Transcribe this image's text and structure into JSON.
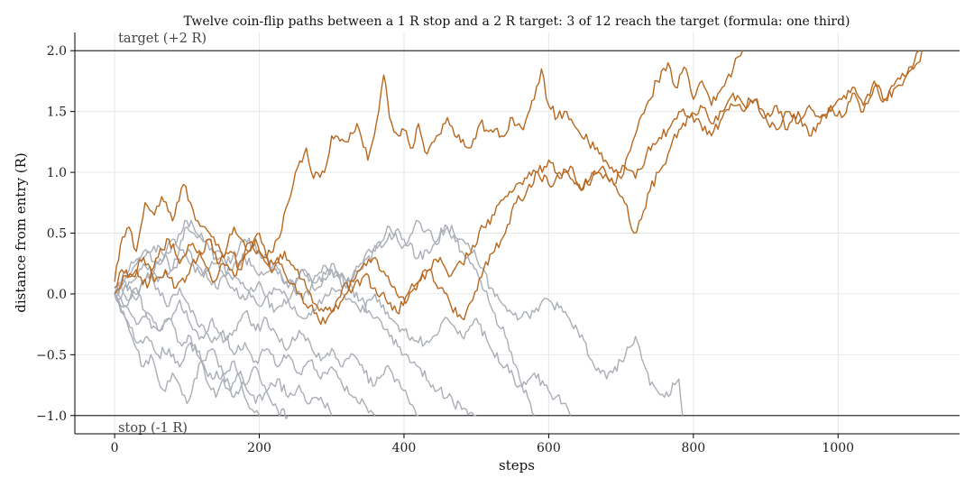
{
  "chart_data": {
    "type": "line",
    "title": "Twelve coin-flip paths between a 1 R stop and a 2 R target: 3 of 12 reach the target (formula: one third)",
    "xlabel": "steps",
    "ylabel": "distance from entry (R)",
    "xlim": [
      -55,
      1168
    ],
    "ylim": [
      -1.15,
      2.15
    ],
    "xticks": [
      0,
      200,
      400,
      600,
      800,
      1000
    ],
    "xtick_labels": [
      "0",
      "200",
      "400",
      "600",
      "800",
      "1000"
    ],
    "yticks": [
      -1.0,
      -0.5,
      0.0,
      0.5,
      1.0,
      1.5,
      2.0
    ],
    "ytick_labels": [
      "−1.0",
      "−0.5",
      "0.0",
      "0.5",
      "1.0",
      "1.5",
      "2.0"
    ],
    "grid": true,
    "reference_lines": [
      {
        "y": 2.0,
        "label": "target (+2 R)"
      },
      {
        "y": -1.0,
        "label": "stop (-1 R)"
      }
    ],
    "colors": {
      "hit_target": "#b8671e",
      "hit_stop": "#a9aeb7",
      "reference": "#333333",
      "grid": "#e6e6e6"
    },
    "series": [
      {
        "outcome": "target",
        "x": [
          0,
          8,
          20,
          30,
          42,
          55,
          65,
          80,
          95,
          105,
          115,
          125,
          140,
          150,
          165,
          175,
          185,
          200,
          210,
          225,
          240,
          250,
          265,
          275,
          290,
          300,
          320,
          335,
          350,
          365,
          372,
          380,
          392,
          400,
          412,
          420,
          432,
          445,
          460,
          470,
          490,
          505,
          520,
          535,
          550,
          565,
          580,
          590,
          600,
          612,
          625,
          640,
          655,
          670,
          690,
          700,
          710,
          722,
          735,
          750,
          765,
          775,
          790,
          800,
          812,
          825,
          840,
          855,
          862,
          868
        ],
        "y": [
          0.1,
          0.4,
          0.55,
          0.35,
          0.75,
          0.65,
          0.8,
          0.6,
          0.9,
          0.75,
          0.6,
          0.55,
          0.4,
          0.3,
          0.55,
          0.45,
          0.35,
          0.5,
          0.3,
          0.45,
          0.75,
          1.0,
          1.2,
          0.95,
          1.0,
          1.3,
          1.25,
          1.4,
          1.1,
          1.5,
          1.8,
          1.45,
          1.3,
          1.35,
          1.2,
          1.4,
          1.15,
          1.3,
          1.45,
          1.3,
          1.2,
          1.4,
          1.35,
          1.3,
          1.45,
          1.35,
          1.6,
          1.85,
          1.55,
          1.45,
          1.5,
          1.35,
          1.25,
          1.15,
          1.0,
          0.95,
          1.15,
          1.35,
          1.55,
          1.75,
          1.9,
          1.7,
          1.85,
          1.6,
          1.75,
          1.55,
          1.7,
          1.85,
          1.95,
          2.0
        ]
      },
      {
        "outcome": "target",
        "x": [
          0,
          10,
          25,
          40,
          55,
          70,
          85,
          100,
          115,
          130,
          145,
          160,
          175,
          190,
          205,
          220,
          235,
          250,
          265,
          280,
          300,
          315,
          330,
          345,
          360,
          375,
          390,
          405,
          420,
          435,
          450,
          465,
          480,
          495,
          510,
          525,
          540,
          555,
          570,
          585,
          600,
          615,
          630,
          645,
          660,
          675,
          690,
          705,
          718,
          725,
          740,
          752,
          765,
          780,
          795,
          810,
          825,
          840,
          855,
          870,
          885,
          900,
          915,
          930,
          945,
          960,
          975,
          990,
          1005,
          1020,
          1035,
          1050,
          1065,
          1080,
          1095,
          1105,
          1112
        ],
        "y": [
          0.05,
          0.2,
          0.15,
          0.3,
          0.1,
          0.2,
          0.05,
          0.15,
          0.3,
          0.45,
          0.25,
          0.35,
          0.2,
          0.4,
          0.3,
          0.2,
          0.35,
          0.2,
          0.05,
          -0.1,
          -0.15,
          0.05,
          0.1,
          0.25,
          0.3,
          0.15,
          0.0,
          -0.05,
          0.1,
          0.2,
          0.05,
          -0.1,
          -0.2,
          -0.05,
          0.2,
          0.35,
          0.5,
          0.75,
          0.85,
          1.0,
          0.9,
          0.95,
          1.05,
          0.85,
          0.95,
          1.05,
          0.9,
          0.75,
          0.5,
          0.6,
          0.85,
          1.0,
          1.15,
          1.35,
          1.45,
          1.4,
          1.3,
          1.45,
          1.55,
          1.5,
          1.6,
          1.45,
          1.55,
          1.35,
          1.5,
          1.3,
          1.4,
          1.55,
          1.45,
          1.65,
          1.5,
          1.7,
          1.6,
          1.75,
          1.8,
          1.9,
          2.0
        ]
      },
      {
        "outcome": "target",
        "x": [
          0,
          15,
          30,
          45,
          60,
          75,
          90,
          105,
          120,
          135,
          150,
          165,
          180,
          195,
          210,
          225,
          240,
          255,
          270,
          285,
          300,
          315,
          330,
          345,
          360,
          375,
          390,
          405,
          420,
          435,
          450,
          465,
          480,
          495,
          510,
          525,
          540,
          555,
          570,
          585,
          600,
          615,
          630,
          645,
          660,
          675,
          690,
          705,
          720,
          735,
          750,
          765,
          780,
          795,
          810,
          825,
          840,
          855,
          870,
          885,
          900,
          915,
          930,
          945,
          960,
          975,
          990,
          1005,
          1020,
          1035,
          1050,
          1065,
          1080,
          1095,
          1110,
          1116
        ],
        "y": [
          0.0,
          0.15,
          0.2,
          0.05,
          0.3,
          0.45,
          0.25,
          0.4,
          0.3,
          0.1,
          0.25,
          0.15,
          0.35,
          0.45,
          0.25,
          0.3,
          0.1,
          0.0,
          -0.1,
          -0.25,
          -0.15,
          -0.05,
          0.05,
          0.15,
          0.05,
          -0.05,
          -0.15,
          0.0,
          0.1,
          0.2,
          0.3,
          0.15,
          0.25,
          0.4,
          0.55,
          0.65,
          0.8,
          0.9,
          0.95,
          1.0,
          1.1,
          1.0,
          0.95,
          0.85,
          1.0,
          0.95,
          0.9,
          1.05,
          0.95,
          1.15,
          1.25,
          1.35,
          1.5,
          1.45,
          1.55,
          1.4,
          1.5,
          1.65,
          1.55,
          1.6,
          1.45,
          1.35,
          1.5,
          1.4,
          1.55,
          1.45,
          1.5,
          1.6,
          1.7,
          1.55,
          1.75,
          1.6,
          1.7,
          1.8,
          1.9,
          2.0
        ]
      },
      {
        "outcome": "stop",
        "x": [
          0,
          10,
          20,
          30,
          40,
          50,
          60,
          70,
          80,
          90,
          100,
          110,
          120,
          130,
          140,
          150,
          160,
          170,
          180,
          190,
          200
        ],
        "y": [
          0.0,
          -0.15,
          -0.3,
          -0.45,
          -0.6,
          -0.5,
          -0.7,
          -0.8,
          -0.65,
          -0.75,
          -0.9,
          -0.7,
          -0.55,
          -0.75,
          -0.85,
          -0.7,
          -0.8,
          -0.65,
          -0.85,
          -0.95,
          -1.0
        ]
      },
      {
        "outcome": "stop",
        "x": [
          0,
          15,
          30,
          45,
          60,
          75,
          90,
          105,
          120,
          135,
          150,
          165,
          180,
          195,
          210,
          225,
          240,
          255,
          270,
          285,
          300,
          315,
          330,
          345,
          360
        ],
        "y": [
          0.0,
          0.1,
          -0.05,
          0.15,
          0.05,
          -0.1,
          0.05,
          -0.15,
          -0.25,
          -0.4,
          -0.3,
          -0.5,
          -0.4,
          -0.55,
          -0.45,
          -0.6,
          -0.5,
          -0.65,
          -0.55,
          -0.7,
          -0.6,
          -0.75,
          -0.85,
          -0.9,
          -1.0
        ]
      },
      {
        "outcome": "stop",
        "x": [
          0,
          20,
          40,
          60,
          80,
          100,
          120,
          140,
          160,
          180,
          200,
          220,
          240,
          260,
          280,
          300,
          320,
          340,
          360,
          380,
          400,
          420,
          440,
          460,
          480,
          500
        ],
        "y": [
          0.0,
          0.2,
          0.35,
          0.25,
          0.45,
          0.3,
          0.15,
          0.25,
          0.05,
          -0.05,
          0.1,
          -0.15,
          -0.05,
          0.2,
          0.05,
          0.2,
          0.1,
          -0.05,
          -0.2,
          -0.35,
          -0.5,
          -0.6,
          -0.75,
          -0.85,
          -0.95,
          -1.0
        ]
      },
      {
        "outcome": "stop",
        "x": [
          0,
          15,
          30,
          45,
          60,
          75,
          90,
          105,
          120,
          135,
          150,
          165,
          180,
          195,
          210,
          225,
          240
        ],
        "y": [
          0.0,
          -0.2,
          -0.4,
          -0.35,
          -0.5,
          -0.45,
          -0.6,
          -0.4,
          -0.55,
          -0.7,
          -0.65,
          -0.85,
          -0.75,
          -0.9,
          -0.8,
          -0.95,
          -1.0
        ]
      },
      {
        "outcome": "stop",
        "x": [
          0,
          20,
          40,
          60,
          80,
          100,
          120,
          140,
          160,
          180,
          200,
          220,
          240,
          260,
          280,
          300,
          320,
          340,
          360,
          380,
          400,
          420,
          440,
          460,
          480,
          500,
          520,
          540,
          560,
          580,
          600,
          620,
          640,
          660,
          680,
          700,
          720,
          740,
          760,
          780,
          785
        ],
        "y": [
          0.0,
          0.1,
          0.25,
          0.1,
          0.2,
          0.35,
          0.2,
          0.05,
          0.2,
          0.3,
          0.15,
          0.25,
          0.05,
          0.2,
          0.1,
          0.2,
          0.05,
          0.25,
          0.4,
          0.55,
          0.45,
          0.3,
          0.4,
          0.55,
          0.45,
          0.3,
          0.05,
          -0.1,
          -0.2,
          -0.15,
          -0.05,
          -0.15,
          -0.3,
          -0.55,
          -0.7,
          -0.55,
          -0.35,
          -0.75,
          -0.85,
          -0.7,
          -1.0
        ]
      },
      {
        "outcome": "stop",
        "x": [
          0,
          15,
          30,
          45,
          60,
          75,
          90,
          105,
          120,
          135,
          150,
          165,
          180,
          195,
          210,
          225,
          240,
          255,
          270,
          285,
          300
        ],
        "y": [
          0.0,
          -0.1,
          0.05,
          -0.2,
          -0.3,
          -0.2,
          -0.4,
          -0.35,
          -0.55,
          -0.45,
          -0.65,
          -0.55,
          -0.75,
          -0.6,
          -0.8,
          -0.7,
          -0.85,
          -0.75,
          -0.9,
          -0.85,
          -1.0
        ]
      },
      {
        "outcome": "stop",
        "x": [
          0,
          20,
          40,
          60,
          80,
          100,
          120,
          140,
          160,
          180,
          200,
          220,
          240,
          260,
          280,
          300,
          320,
          340,
          360,
          380,
          400,
          420,
          440,
          460,
          480,
          500,
          520,
          540,
          560,
          580,
          600,
          620,
          630
        ],
        "y": [
          0.0,
          0.15,
          0.3,
          0.4,
          0.2,
          0.55,
          0.45,
          0.3,
          0.15,
          0.05,
          -0.1,
          0.05,
          -0.05,
          -0.2,
          -0.1,
          0.05,
          -0.05,
          -0.15,
          0.0,
          -0.2,
          -0.3,
          -0.4,
          -0.35,
          -0.2,
          -0.35,
          -0.2,
          -0.45,
          -0.6,
          -0.75,
          -0.65,
          -0.8,
          -0.9,
          -1.0
        ]
      },
      {
        "outcome": "stop",
        "x": [
          0,
          20,
          40,
          60,
          80,
          100,
          120,
          140,
          160,
          180,
          200,
          220,
          240,
          260,
          280,
          300,
          320,
          340,
          360,
          380,
          400,
          420,
          440,
          460,
          480,
          500,
          520,
          540,
          560,
          580
        ],
        "y": [
          0.0,
          -0.05,
          0.1,
          0.25,
          0.4,
          0.6,
          0.5,
          0.35,
          0.25,
          0.45,
          0.35,
          0.2,
          0.1,
          -0.05,
          0.15,
          0.25,
          0.1,
          0.2,
          0.35,
          0.5,
          0.4,
          0.6,
          0.45,
          0.55,
          0.35,
          0.2,
          -0.1,
          -0.35,
          -0.7,
          -1.0
        ]
      },
      {
        "outcome": "stop",
        "x": [
          0,
          15,
          30,
          45,
          60,
          75,
          90,
          105,
          120,
          135,
          150,
          165,
          180,
          195,
          210,
          225,
          240,
          255,
          270,
          285,
          300,
          315,
          330,
          345,
          360,
          375,
          390,
          405,
          420
        ],
        "y": [
          0.0,
          -0.1,
          -0.25,
          -0.15,
          -0.3,
          -0.2,
          -0.05,
          -0.25,
          -0.35,
          -0.2,
          -0.4,
          -0.3,
          -0.15,
          -0.3,
          -0.2,
          -0.35,
          -0.45,
          -0.3,
          -0.4,
          -0.55,
          -0.45,
          -0.6,
          -0.5,
          -0.65,
          -0.75,
          -0.6,
          -0.7,
          -0.85,
          -1.0
        ]
      }
    ]
  }
}
